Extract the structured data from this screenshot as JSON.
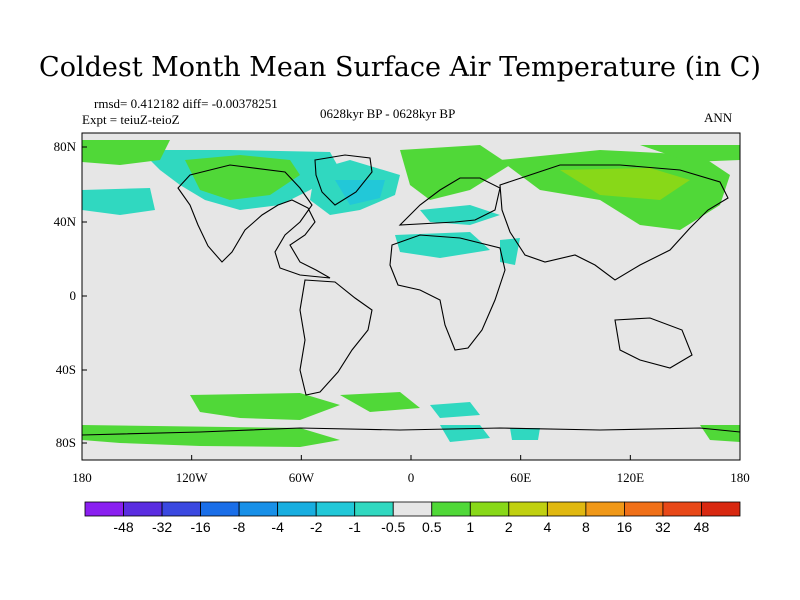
{
  "title": "Coldest Month Mean Surface Air Temperature (in C)",
  "stats": "rmsd= 0.412182 diff= -0.00378251",
  "experiment": "Expt = teiuZ-teioZ",
  "period": "0628kyr BP - 0628kyr BP",
  "season": "ANN",
  "lat_labels": [
    "80N",
    "40N",
    "0",
    "40S",
    "80S"
  ],
  "lon_labels": [
    "180",
    "120W",
    "60W",
    "0",
    "60E",
    "120E",
    "180"
  ],
  "colorbar": {
    "labels": [
      "-48",
      "-32",
      "-16",
      "-8",
      "-4",
      "-2",
      "-1",
      "-0.5",
      "0.5",
      "1",
      "2",
      "4",
      "8",
      "16",
      "32",
      "48"
    ],
    "colors": [
      "#8a1ff0",
      "#5a2ce0",
      "#3a48e0",
      "#1a6ee8",
      "#1890e8",
      "#18aee0",
      "#22c8d8",
      "#30d8c0",
      "#e6e6e6",
      "#50d838",
      "#88d818",
      "#c0d010",
      "#e0b810",
      "#f09818",
      "#f07018",
      "#e84818",
      "#d82810"
    ]
  },
  "map_colors": {
    "background": "#e6e6e6",
    "teal": "#30d8c0",
    "cyan": "#22c8d8",
    "blue": "#18aee0",
    "green": "#50d838",
    "lime": "#88d818",
    "coast": "#000000"
  }
}
